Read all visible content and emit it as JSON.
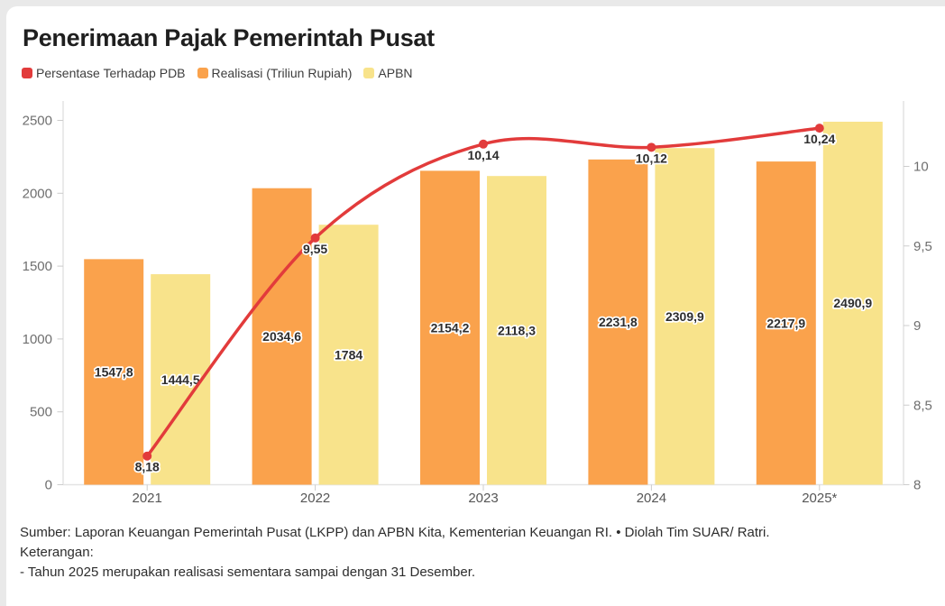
{
  "card": {
    "title": "Penerimaan Pajak Pemerintah Pusat"
  },
  "legend": [
    {
      "id": "persentase-terhadap-pdb",
      "label": "Persentase Terhadap PDB",
      "color": "#E23B3B"
    },
    {
      "id": "realisasi",
      "label": "Realisasi (Triliun Rupiah)",
      "color": "#FAA24C"
    },
    {
      "id": "apbn",
      "label": "APBN",
      "color": "#F8E38B"
    }
  ],
  "chart_data": {
    "type": "bar+line",
    "categories": [
      "2021",
      "2022",
      "2023",
      "2024",
      "2025*"
    ],
    "series": [
      {
        "name": "Realisasi (Triliun Rupiah)",
        "type": "bar",
        "axis": "left",
        "color": "#FAA24C",
        "values": [
          1547.8,
          2034.6,
          2154.2,
          2231.8,
          2217.9
        ],
        "labels": [
          "1547,8",
          "2034,6",
          "2154,2",
          "2231,8",
          "2217,9"
        ]
      },
      {
        "name": "APBN",
        "type": "bar",
        "axis": "left",
        "color": "#F8E38B",
        "values": [
          1444.5,
          1784,
          2118.3,
          2309.9,
          2490.9
        ],
        "labels": [
          "1444,5",
          "1784",
          "2118,3",
          "2309,9",
          "2490,9"
        ]
      },
      {
        "name": "Persentase Terhadap PDB",
        "type": "line",
        "axis": "right",
        "color": "#E23B3B",
        "values": [
          8.18,
          9.55,
          10.14,
          10.12,
          10.24
        ],
        "labels": [
          "8,18",
          "9,55",
          "10,14",
          "10,12",
          "10,24"
        ]
      }
    ],
    "left_axis": {
      "min": 0,
      "max": 2500,
      "ticks": [
        0,
        500,
        1000,
        1500,
        2000,
        2500
      ],
      "labels": [
        "0",
        "500",
        "1000",
        "1500",
        "2000",
        "2500"
      ]
    },
    "right_axis": {
      "min": 8,
      "ticks": [
        8,
        8.5,
        9,
        9.5,
        10
      ],
      "labels": [
        "8",
        "8,5",
        "9",
        "9,5",
        "10"
      ]
    },
    "title": "Penerimaan Pajak Pemerintah Pusat",
    "grid": false,
    "legend_position": "top-left"
  },
  "footer": {
    "source": "Sumber: Laporan Keuangan Pemerintah Pusat (LKPP) dan APBN Kita, Kementerian Keuangan RI. • Diolah Tim SUAR/ Ratri.",
    "note_title": "Keterangan:",
    "note_line": "- Tahun 2025 merupakan realisasi sementara sampai dengan 31 Desember."
  }
}
